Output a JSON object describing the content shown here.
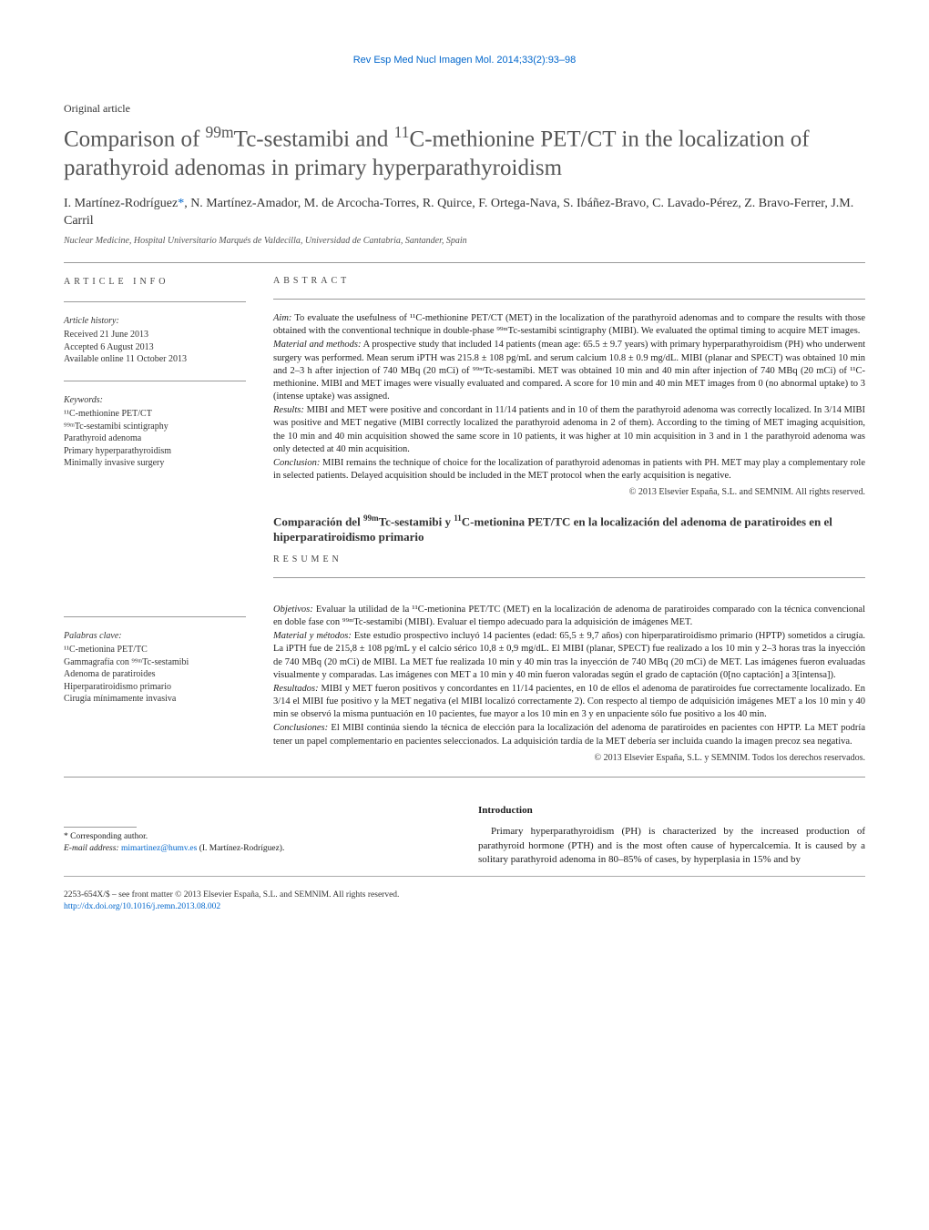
{
  "journal_header": "Rev Esp Med Nucl Imagen Mol. 2014;33(2):93–98",
  "article_type": "Original article",
  "title_html": "Comparison of <sup>99m</sup>Tc-sestamibi and <sup>11</sup>C-methionine PET/CT in the localization of parathyroid adenomas in primary hyperparathyroidism",
  "authors_html": "I. Martínez-Rodríguez<span class=\"asterisk\">*</span>, N. Martínez-Amador, M. de Arcocha-Torres, R. Quirce, F. Ortega-Nava, S. Ibáñez-Bravo, C. Lavado-Pérez, Z. Bravo-Ferrer, J.M. Carril",
  "affiliation": "Nuclear Medicine, Hospital Universitario Marqués de Valdecilla, Universidad de Cantabria, Santander, Spain",
  "article_info_label": "ARTICLE INFO",
  "abstract_label": "ABSTRACT",
  "history": {
    "heading": "Article history:",
    "received": "Received 21 June 2013",
    "accepted": "Accepted 6 August 2013",
    "online": "Available online 11 October 2013"
  },
  "keywords": {
    "heading": "Keywords:",
    "items": [
      "¹¹C-methionine PET/CT",
      "⁹⁹ᵐTc-sestamibi scintigraphy",
      "Parathyroid adenoma",
      "Primary hyperparathyroidism",
      "Minimally invasive surgery"
    ]
  },
  "abstract": {
    "aim_label": "Aim:",
    "aim_text": " To evaluate the usefulness of ¹¹C-methionine PET/CT (MET) in the localization of the parathyroid adenomas and to compare the results with those obtained with the conventional technique in double-phase ⁹⁹ᵐTc-sestamibi scintigraphy (MIBI). We evaluated the optimal timing to acquire MET images.",
    "methods_label": "Material and methods:",
    "methods_text": " A prospective study that included 14 patients (mean age: 65.5 ± 9.7 years) with primary hyperparathyroidism (PH) who underwent surgery was performed. Mean serum iPTH was 215.8 ± 108 pg/mL and serum calcium 10.8 ± 0.9 mg/dL. MIBI (planar and SPECT) was obtained 10 min and 2–3 h after injection of 740 MBq (20 mCi) of ⁹⁹ᵐTc-sestamibi. MET was obtained 10 min and 40 min after injection of 740 MBq (20 mCi) of ¹¹C-methionine. MIBI and MET images were visually evaluated and compared. A score for 10 min and 40 min MET images from 0 (no abnormal uptake) to 3 (intense uptake) was assigned.",
    "results_label": "Results:",
    "results_text": " MIBI and MET were positive and concordant in 11/14 patients and in 10 of them the parathyroid adenoma was correctly localized. In 3/14 MIBI was positive and MET negative (MIBI correctly localized the parathyroid adenoma in 2 of them). According to the timing of MET imaging acquisition, the 10 min and 40 min acquisition showed the same score in 10 patients, it was higher at 10 min acquisition in 3 and in 1 the parathyroid adenoma was only detected at 40 min acquisition.",
    "conclusion_label": "Conclusion:",
    "conclusion_text": " MIBI remains the technique of choice for the localization of parathyroid adenomas in patients with PH. MET may play a complementary role in selected patients. Delayed acquisition should be included in the MET protocol when the early acquisition is negative.",
    "copyright": "© 2013 Elsevier España, S.L. and SEMNIM. All rights reserved."
  },
  "spanish_title_html": "Comparación del <sup>99m</sup>Tc-sestamibi y <sup>11</sup>C-metionina PET/TC en la localización del adenoma de paratiroides en el hiperparatiroidismo primario",
  "resumen_label": "RESUMEN",
  "palabras": {
    "heading": "Palabras clave:",
    "items": [
      "¹¹C-metionina PET/TC",
      "Gammagrafía con ⁹⁹ᵐTc-sestamibi",
      "Adenoma de paratiroides",
      "Hiperparatiroidismo primario",
      "Cirugía mínimamente invasiva"
    ]
  },
  "resumen": {
    "obj_label": "Objetivos:",
    "obj_text": " Evaluar la utilidad de la ¹¹C-metionina PET/TC (MET) en la localización de adenoma de paratiroides comparado con la técnica convencional en doble fase con ⁹⁹ᵐTc-sestamibi (MIBI). Evaluar el tiempo adecuado para la adquisición de imágenes MET.",
    "mat_label": "Material y métodos:",
    "mat_text": " Este estudio prospectivo incluyó 14 pacientes (edad: 65,5 ± 9,7 años) con hiperparatiroidismo primario (HPTP) sometidos a cirugía. La iPTH fue de 215,8 ± 108 pg/mL y el calcio sérico 10,8 ± 0,9 mg/dL. El MIBI (planar, SPECT) fue realizado a los 10 min y 2–3 horas tras la inyección de 740 MBq (20 mCi) de MIBI. La MET fue realizada 10 min y 40 min tras la inyección de 740 MBq (20 mCi) de MET. Las imágenes fueron evaluadas visualmente y comparadas. Las imágenes con MET a 10 min y 40 min fueron valoradas según el grado de captación (0[no captación] a 3[intensa]).",
    "res_label": "Resultados:",
    "res_text": " MIBI y MET fueron positivos y concordantes en 11/14 pacientes, en 10 de ellos el adenoma de paratiroides fue correctamente localizado. En 3/14 el MIBI fue positivo y la MET negativa (el MIBI localizó correctamente 2). Con respecto al tiempo de adquisición imágenes MET a los 10 min y 40 min se observó la misma puntuación en 10 pacientes, fue mayor a los 10 min en 3 y en unpaciente sólo fue positivo a los 40 min.",
    "con_label": "Conclusiones:",
    "con_text": " El MIBI continúa siendo la técnica de elección para la localización del adenoma de paratiroides en pacientes con HPTP. La MET podría tener un papel complementario en pacientes seleccionados. La adquisición tardía de la MET debería ser incluida cuando la imagen precoz sea negativa.",
    "copyright": "© 2013 Elsevier España, S.L. y SEMNIM. Todos los derechos reservados."
  },
  "introduction": {
    "heading": "Introduction",
    "text": "Primary hyperparathyroidism (PH) is characterized by the increased production of parathyroid hormone (PTH) and is the most often cause of hypercalcemia. It is caused by a solitary parathyroid adenoma in 80–85% of cases, by hyperplasia in 15% and by"
  },
  "corresponding": {
    "label": "* Corresponding author.",
    "email_label": "E-mail address:",
    "email": "mimartinez@humv.es",
    "name": "(I. Martínez-Rodríguez)."
  },
  "footer": {
    "line1": "2253-654X/$ – see front matter © 2013 Elsevier España, S.L. and SEMNIM. All rights reserved.",
    "doi": "http://dx.doi.org/10.1016/j.remn.2013.08.002"
  },
  "colors": {
    "link": "#0066cc",
    "text": "#1a1a1a",
    "muted": "#555",
    "rule": "#999"
  }
}
